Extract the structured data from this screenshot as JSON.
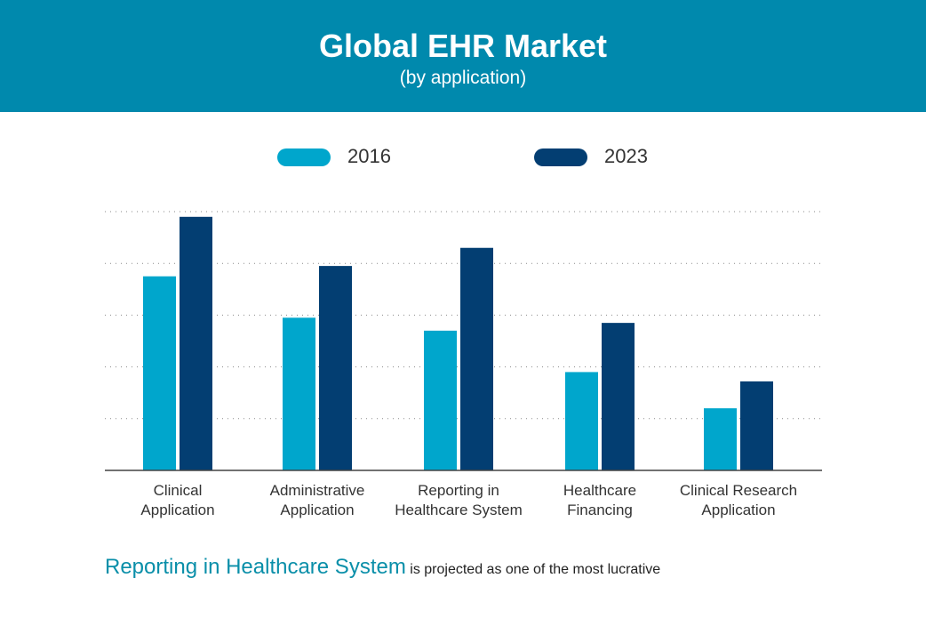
{
  "header": {
    "title": "Global EHR Market",
    "subtitle": "(by application)"
  },
  "colors": {
    "banner": "#0089ad",
    "series_2016": "#00a6cc",
    "series_2023": "#033e72",
    "highlight_text": "#0a8fa9"
  },
  "footer": {
    "highlight": "Reporting in Healthcare System",
    "rest": "is projected as one of the most lucrative"
  },
  "chart_data": {
    "type": "bar",
    "title": "Global EHR Market",
    "subtitle": "(by application)",
    "xlabel": "",
    "ylabel": "",
    "categories": [
      "Clinical\nApplication",
      "Administrative\nApplication",
      "Reporting in\nHealthcare System",
      "Healthcare\nFinancing",
      "Clinical Research\nApplication"
    ],
    "series": [
      {
        "name": "2016",
        "color": "#00a6cc",
        "values": [
          3.75,
          2.95,
          2.7,
          1.9,
          1.2
        ]
      },
      {
        "name": "2023",
        "color": "#033e72",
        "values": [
          4.9,
          3.95,
          4.3,
          2.85,
          1.72
        ]
      }
    ],
    "ylim": [
      0,
      5
    ],
    "grid": true,
    "legend": "top"
  }
}
